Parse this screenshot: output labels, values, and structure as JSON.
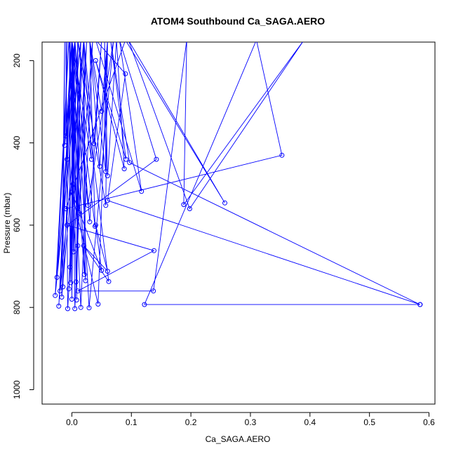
{
  "chart_data": {
    "type": "line",
    "title": "ATOM4 Southbound Ca_SAGA.AERO",
    "xlabel": "Ca_SAGA.AERO",
    "ylabel": "Pressure (mbar)",
    "xlim": [
      -0.05,
      0.61
    ],
    "ylim": [
      1035,
      155
    ],
    "y_reversed": true,
    "x_ticks": [
      0.0,
      0.1,
      0.2,
      0.3,
      0.4,
      0.5,
      0.6
    ],
    "x_tick_labels": [
      "0.0",
      "0.1",
      "0.2",
      "0.3",
      "0.4",
      "0.5",
      "0.6"
    ],
    "y_ticks": [
      200,
      400,
      600,
      800,
      1000
    ],
    "y_tick_labels": [
      "200",
      "400",
      "600",
      "800",
      "1000"
    ],
    "grid": false,
    "series_color": "#0000ff",
    "marker": "open-circle",
    "series": [
      {
        "values": [
          [
            0.585,
            793
          ],
          [
            0.122,
            793
          ],
          [
            0.31,
            150
          ],
          [
            0.353,
            430
          ],
          [
            -0.01,
            560
          ],
          [
            0.09,
            150
          ],
          [
            0.257,
            546
          ],
          [
            0.095,
            150
          ],
          [
            0.198,
            560
          ],
          [
            0.39,
            150
          ],
          [
            0.188,
            550
          ],
          [
            0.193,
            150
          ],
          [
            0.137,
            760
          ],
          [
            0.01,
            760
          ],
          [
            0.138,
            662
          ],
          [
            -0.008,
            600
          ],
          [
            0.142,
            440
          ],
          [
            0.08,
            150
          ],
          [
            0.117,
            518
          ],
          [
            0.04,
            150
          ],
          [
            0.09,
            232
          ],
          [
            0.06,
            540
          ],
          [
            0.585,
            793
          ],
          [
            0.097,
            448
          ],
          [
            0.065,
            150
          ],
          [
            0.091,
            440
          ],
          [
            0.04,
            200
          ],
          [
            0.088,
            463
          ],
          [
            0.075,
            150
          ],
          [
            0.06,
            480
          ],
          [
            0.055,
            150
          ],
          [
            0.057,
            470
          ],
          [
            0.03,
            150
          ],
          [
            0.05,
            323
          ],
          [
            0.06,
            150
          ],
          [
            0.057,
            552
          ],
          [
            0.01,
            150
          ],
          [
            0.062,
            737
          ],
          [
            0.02,
            650
          ],
          [
            0.06,
            712
          ],
          [
            0.04,
            600
          ],
          [
            0.05,
            710
          ],
          [
            0.0,
            520
          ],
          [
            0.044,
            792
          ],
          [
            0.06,
            150
          ],
          [
            0.047,
            457
          ],
          [
            0.03,
            150
          ],
          [
            0.039,
            603
          ],
          [
            0.0,
            150
          ],
          [
            0.033,
            440
          ],
          [
            0.02,
            150
          ],
          [
            0.037,
            402
          ],
          [
            0.05,
            150
          ],
          [
            0.03,
            592
          ],
          [
            0.005,
            150
          ],
          [
            0.029,
            801
          ],
          [
            0.07,
            150
          ],
          [
            0.027,
            552
          ],
          [
            0.0,
            150
          ],
          [
            0.023,
            735
          ],
          [
            0.02,
            150
          ],
          [
            0.021,
            720
          ],
          [
            -0.005,
            150
          ],
          [
            0.015,
            800
          ],
          [
            0.035,
            150
          ],
          [
            0.012,
            570
          ],
          [
            0.0,
            150
          ],
          [
            0.01,
            650
          ],
          [
            0.01,
            150
          ],
          [
            0.008,
            782
          ],
          [
            0.015,
            150
          ],
          [
            0.007,
            738
          ],
          [
            0.0,
            150
          ],
          [
            0.005,
            803
          ],
          [
            0.025,
            150
          ],
          [
            0.003,
            665
          ],
          [
            -0.003,
            150
          ],
          [
            0.002,
            500
          ],
          [
            0.0,
            150
          ],
          [
            0.0,
            780
          ],
          [
            0.005,
            150
          ],
          [
            -0.002,
            740
          ],
          [
            -0.004,
            150
          ],
          [
            -0.003,
            702
          ],
          [
            0.01,
            150
          ],
          [
            -0.005,
            755
          ],
          [
            0.02,
            150
          ],
          [
            -0.007,
            803
          ],
          [
            -0.01,
            150
          ],
          [
            -0.008,
            440
          ],
          [
            0.0,
            150
          ],
          [
            -0.01,
            383
          ],
          [
            -0.008,
            150
          ],
          [
            -0.012,
            406
          ],
          [
            0.005,
            150
          ],
          [
            -0.015,
            750
          ],
          [
            -0.012,
            150
          ],
          [
            -0.017,
            775
          ],
          [
            0.02,
            150
          ],
          [
            -0.02,
            760
          ],
          [
            0.0,
            150
          ],
          [
            -0.022,
            797
          ],
          [
            0.005,
            150
          ],
          [
            -0.025,
            727
          ],
          [
            -0.005,
            150
          ],
          [
            -0.028,
            771
          ],
          [
            0.015,
            150
          ]
        ]
      }
    ]
  }
}
